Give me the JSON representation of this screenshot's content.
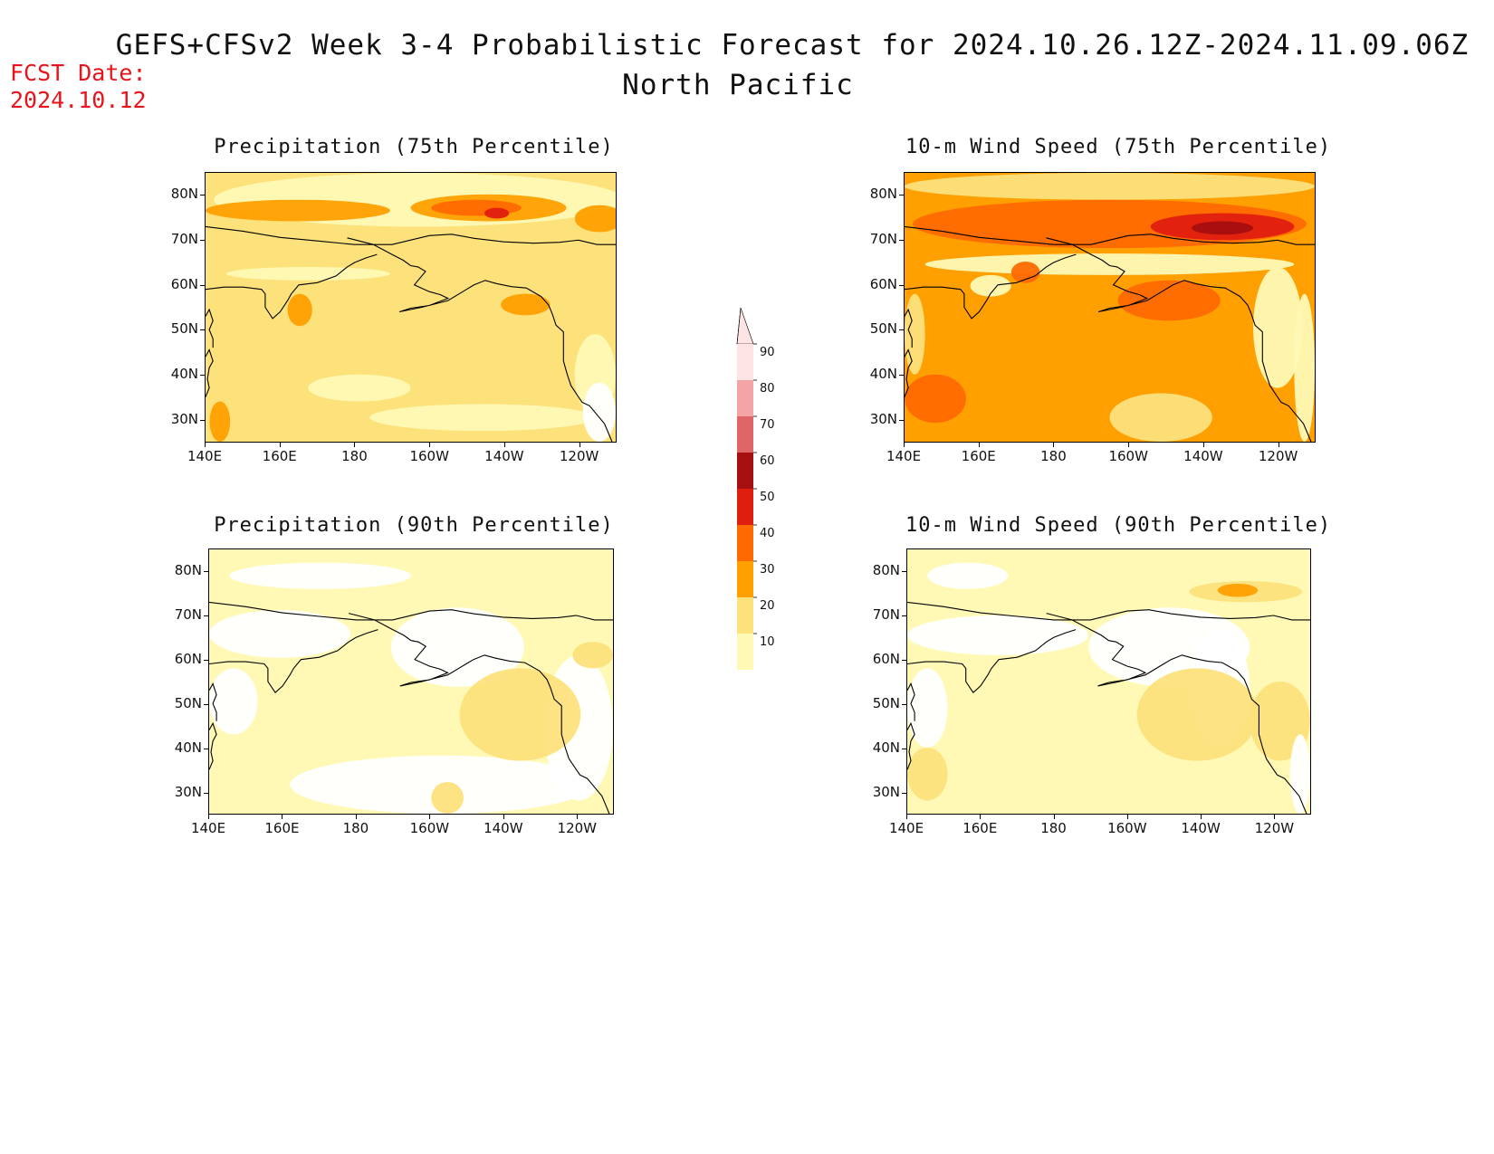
{
  "header": {
    "title": "GEFS+CFSv2 Week 3-4 Probabilistic Forecast for 2024.10.26.12Z-2024.11.09.06Z",
    "region": "North Pacific",
    "fcst_label": "FCST Date:",
    "fcst_date": "2024.10.12"
  },
  "panels": [
    {
      "title": "Precipitation (75th Percentile)",
      "variable": "precip",
      "percentile": "75"
    },
    {
      "title": "10-m Wind Speed (75th Percentile)",
      "variable": "wind",
      "percentile": "75"
    },
    {
      "title": "Precipitation (90th Percentile)",
      "variable": "precip",
      "percentile": "90"
    },
    {
      "title": "10-m Wind Speed (90th Percentile)",
      "variable": "wind",
      "percentile": "90"
    }
  ],
  "axes": {
    "lat_labels": [
      "80N",
      "70N",
      "60N",
      "50N",
      "40N",
      "30N"
    ],
    "lon_labels": [
      "140E",
      "160E",
      "180",
      "160W",
      "140W",
      "120W"
    ]
  },
  "colorbar": {
    "labels": [
      "90",
      "80",
      "70",
      "60",
      "50",
      "40",
      "30",
      "20",
      "10"
    ],
    "colors": [
      "#fde3e3",
      "#f4a4a4",
      "#de6666",
      "#a50f0f",
      "#e01e0f",
      "#ff6a00",
      "#ff9f00",
      "#fde27c",
      "#fff9b5"
    ]
  }
}
